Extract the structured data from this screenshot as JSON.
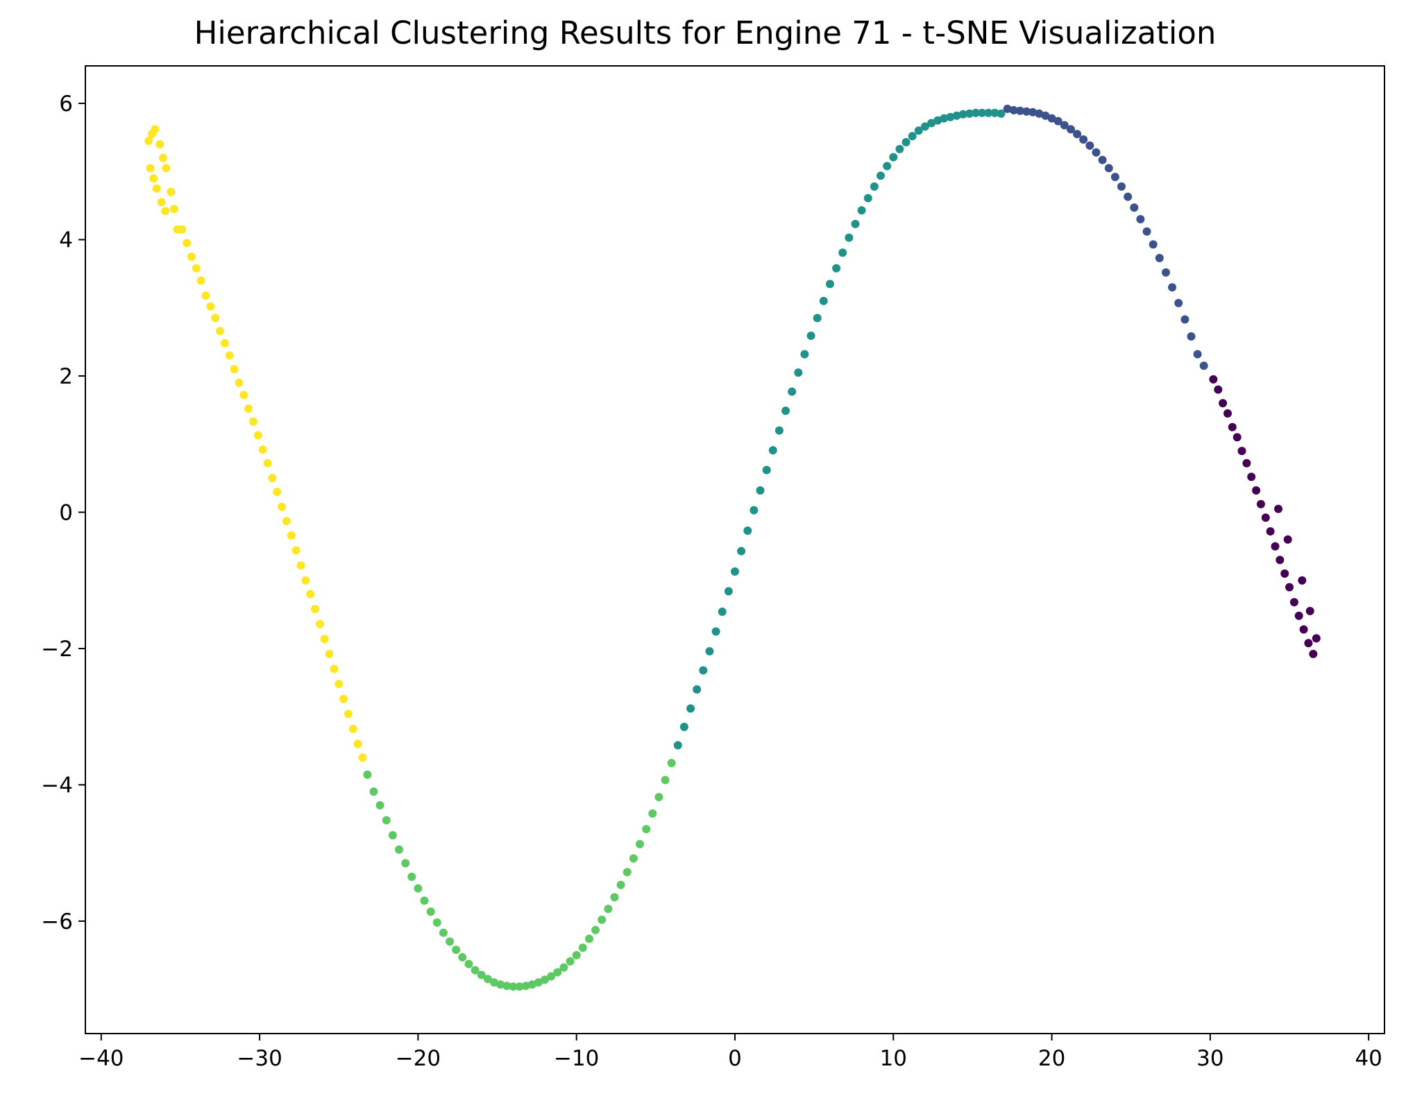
{
  "chart_data": {
    "type": "scatter",
    "title": "Hierarchical Clustering Results for Engine 71 - t-SNE Visualization",
    "xlabel": "",
    "ylabel": "",
    "xlim": [
      -41.0,
      41.0
    ],
    "ylim": [
      -7.65,
      6.55
    ],
    "x_ticks": [
      -40,
      -30,
      -20,
      -10,
      0,
      10,
      20,
      30,
      40
    ],
    "y_ticks": [
      -6,
      -4,
      -2,
      0,
      2,
      4,
      6
    ],
    "x_tick_labels": [
      "−40",
      "−30",
      "−20",
      "−10",
      "0",
      "10",
      "20",
      "30",
      "40"
    ],
    "y_tick_labels": [
      "−6",
      "−4",
      "−2",
      "0",
      "2",
      "4",
      "6"
    ],
    "grid": false,
    "legend": "none",
    "colormap": "viridis",
    "clusters": [
      {
        "color": "#fde725",
        "x_range": [
          -37.2,
          -24.5
        ],
        "peak": [
          -36.8,
          5.6
        ],
        "end": [
          -24.5,
          -3.7
        ]
      },
      {
        "color": "#5ec962",
        "x_range": [
          -24.5,
          -2.8
        ],
        "min": [
          -13.0,
          -6.95
        ],
        "end": [
          -2.8,
          -3.7
        ]
      },
      {
        "color": "#21918c",
        "x_range": [
          -2.8,
          17.0
        ],
        "end": [
          17.0,
          5.85
        ]
      },
      {
        "color": "#3b528b",
        "x_range": [
          17.0,
          30.2
        ],
        "peak": [
          17.5,
          5.9
        ],
        "end": [
          30.2,
          2.0
        ]
      },
      {
        "color": "#440154",
        "x_range": [
          30.2,
          36.8
        ],
        "end": [
          36.8,
          -2.1
        ]
      }
    ],
    "points": [
      {
        "x": -37.0,
        "y": 5.45,
        "c": 0
      },
      {
        "x": -36.8,
        "y": 5.55,
        "c": 0
      },
      {
        "x": -36.6,
        "y": 5.62,
        "c": 0
      },
      {
        "x": -36.9,
        "y": 5.05,
        "c": 0
      },
      {
        "x": -36.7,
        "y": 4.9,
        "c": 0
      },
      {
        "x": -36.5,
        "y": 4.75,
        "c": 0
      },
      {
        "x": -36.3,
        "y": 5.4,
        "c": 0
      },
      {
        "x": -36.1,
        "y": 5.2,
        "c": 0
      },
      {
        "x": -35.9,
        "y": 5.05,
        "c": 0
      },
      {
        "x": -36.2,
        "y": 4.55,
        "c": 0
      },
      {
        "x": -35.95,
        "y": 4.42,
        "c": 0
      },
      {
        "x": -35.6,
        "y": 4.7,
        "c": 0
      },
      {
        "x": -35.4,
        "y": 4.45,
        "c": 0
      },
      {
        "x": -35.2,
        "y": 4.15,
        "c": 0
      },
      {
        "x": -34.9,
        "y": 4.15,
        "c": 0
      },
      {
        "x": -34.6,
        "y": 3.95,
        "c": 0
      },
      {
        "x": -34.3,
        "y": 3.75,
        "c": 0
      },
      {
        "x": -34.0,
        "y": 3.58,
        "c": 0
      },
      {
        "x": -33.7,
        "y": 3.4,
        "c": 0
      },
      {
        "x": -33.4,
        "y": 3.18,
        "c": 0
      },
      {
        "x": -33.1,
        "y": 3.02,
        "c": 0
      },
      {
        "x": -32.8,
        "y": 2.85,
        "c": 0
      },
      {
        "x": -32.5,
        "y": 2.66,
        "c": 0
      },
      {
        "x": -32.2,
        "y": 2.48,
        "c": 0
      },
      {
        "x": -31.9,
        "y": 2.3,
        "c": 0
      },
      {
        "x": -31.6,
        "y": 2.1,
        "c": 0
      },
      {
        "x": -31.3,
        "y": 1.9,
        "c": 0
      },
      {
        "x": -31.0,
        "y": 1.72,
        "c": 0
      },
      {
        "x": -30.7,
        "y": 1.52,
        "c": 0
      },
      {
        "x": -30.4,
        "y": 1.33,
        "c": 0
      },
      {
        "x": -30.1,
        "y": 1.13,
        "c": 0
      },
      {
        "x": -29.8,
        "y": 0.92,
        "c": 0
      },
      {
        "x": -29.5,
        "y": 0.72,
        "c": 0
      },
      {
        "x": -29.2,
        "y": 0.5,
        "c": 0
      },
      {
        "x": -28.9,
        "y": 0.3,
        "c": 0
      },
      {
        "x": -28.6,
        "y": 0.08,
        "c": 0
      },
      {
        "x": -28.3,
        "y": -0.13,
        "c": 0
      },
      {
        "x": -28.0,
        "y": -0.34,
        "c": 0
      },
      {
        "x": -27.7,
        "y": -0.56,
        "c": 0
      },
      {
        "x": -27.4,
        "y": -0.78,
        "c": 0
      },
      {
        "x": -27.1,
        "y": -1.0,
        "c": 0
      },
      {
        "x": -26.8,
        "y": -1.2,
        "c": 0
      },
      {
        "x": -26.5,
        "y": -1.42,
        "c": 0
      },
      {
        "x": -26.2,
        "y": -1.64,
        "c": 0
      },
      {
        "x": -25.9,
        "y": -1.86,
        "c": 0
      },
      {
        "x": -25.6,
        "y": -2.08,
        "c": 0
      },
      {
        "x": -25.3,
        "y": -2.3,
        "c": 0
      },
      {
        "x": -25.0,
        "y": -2.52,
        "c": 0
      },
      {
        "x": -24.7,
        "y": -2.74,
        "c": 0
      },
      {
        "x": -24.4,
        "y": -2.96,
        "c": 0
      },
      {
        "x": -24.1,
        "y": -3.18,
        "c": 0
      },
      {
        "x": -23.8,
        "y": -3.4,
        "c": 0
      },
      {
        "x": -23.5,
        "y": -3.6,
        "c": 0
      },
      {
        "x": -23.2,
        "y": -3.85,
        "c": 1
      },
      {
        "x": -22.8,
        "y": -4.1,
        "c": 1
      },
      {
        "x": -22.4,
        "y": -4.3,
        "c": 1
      },
      {
        "x": -22.0,
        "y": -4.52,
        "c": 1
      },
      {
        "x": -21.6,
        "y": -4.74,
        "c": 1
      },
      {
        "x": -21.2,
        "y": -4.95,
        "c": 1
      },
      {
        "x": -20.8,
        "y": -5.15,
        "c": 1
      },
      {
        "x": -20.4,
        "y": -5.35,
        "c": 1
      },
      {
        "x": -20.0,
        "y": -5.52,
        "c": 1
      },
      {
        "x": -19.6,
        "y": -5.7,
        "c": 1
      },
      {
        "x": -19.2,
        "y": -5.86,
        "c": 1
      },
      {
        "x": -18.8,
        "y": -6.02,
        "c": 1
      },
      {
        "x": -18.4,
        "y": -6.17,
        "c": 1
      },
      {
        "x": -18.0,
        "y": -6.3,
        "c": 1
      },
      {
        "x": -17.6,
        "y": -6.42,
        "c": 1
      },
      {
        "x": -17.2,
        "y": -6.53,
        "c": 1
      },
      {
        "x": -16.8,
        "y": -6.63,
        "c": 1
      },
      {
        "x": -16.4,
        "y": -6.72,
        "c": 1
      },
      {
        "x": -16.0,
        "y": -6.79,
        "c": 1
      },
      {
        "x": -15.6,
        "y": -6.85,
        "c": 1
      },
      {
        "x": -15.2,
        "y": -6.9,
        "c": 1
      },
      {
        "x": -14.8,
        "y": -6.93,
        "c": 1
      },
      {
        "x": -14.4,
        "y": -6.95,
        "c": 1
      },
      {
        "x": -14.0,
        "y": -6.96,
        "c": 1
      },
      {
        "x": -13.6,
        "y": -6.96,
        "c": 1
      },
      {
        "x": -13.2,
        "y": -6.95,
        "c": 1
      },
      {
        "x": -12.8,
        "y": -6.93,
        "c": 1
      },
      {
        "x": -12.4,
        "y": -6.9,
        "c": 1
      },
      {
        "x": -12.0,
        "y": -6.86,
        "c": 1
      },
      {
        "x": -11.6,
        "y": -6.81,
        "c": 1
      },
      {
        "x": -11.2,
        "y": -6.75,
        "c": 1
      },
      {
        "x": -10.8,
        "y": -6.68,
        "c": 1
      },
      {
        "x": -10.4,
        "y": -6.59,
        "c": 1
      },
      {
        "x": -10.0,
        "y": -6.5,
        "c": 1
      },
      {
        "x": -9.6,
        "y": -6.39,
        "c": 1
      },
      {
        "x": -9.2,
        "y": -6.26,
        "c": 1
      },
      {
        "x": -8.8,
        "y": -6.13,
        "c": 1
      },
      {
        "x": -8.4,
        "y": -5.98,
        "c": 1
      },
      {
        "x": -8.0,
        "y": -5.82,
        "c": 1
      },
      {
        "x": -7.6,
        "y": -5.65,
        "c": 1
      },
      {
        "x": -7.2,
        "y": -5.47,
        "c": 1
      },
      {
        "x": -6.8,
        "y": -5.28,
        "c": 1
      },
      {
        "x": -6.4,
        "y": -5.08,
        "c": 1
      },
      {
        "x": -6.0,
        "y": -4.87,
        "c": 1
      },
      {
        "x": -5.6,
        "y": -4.65,
        "c": 1
      },
      {
        "x": -5.2,
        "y": -4.42,
        "c": 1
      },
      {
        "x": -4.8,
        "y": -4.18,
        "c": 1
      },
      {
        "x": -4.4,
        "y": -3.93,
        "c": 1
      },
      {
        "x": -4.0,
        "y": -3.68,
        "c": 1
      },
      {
        "x": -3.6,
        "y": -3.42,
        "c": 2
      },
      {
        "x": -3.2,
        "y": -3.15,
        "c": 2
      },
      {
        "x": -2.8,
        "y": -2.88,
        "c": 2
      },
      {
        "x": -2.4,
        "y": -2.6,
        "c": 2
      },
      {
        "x": -2.0,
        "y": -2.32,
        "c": 2
      },
      {
        "x": -1.6,
        "y": -2.04,
        "c": 2
      },
      {
        "x": -1.2,
        "y": -1.75,
        "c": 2
      },
      {
        "x": -0.8,
        "y": -1.46,
        "c": 2
      },
      {
        "x": -0.4,
        "y": -1.16,
        "c": 2
      },
      {
        "x": 0.0,
        "y": -0.87,
        "c": 2
      },
      {
        "x": 0.4,
        "y": -0.57,
        "c": 2
      },
      {
        "x": 0.8,
        "y": -0.27,
        "c": 2
      },
      {
        "x": 1.2,
        "y": 0.03,
        "c": 2
      },
      {
        "x": 1.6,
        "y": 0.32,
        "c": 2
      },
      {
        "x": 2.0,
        "y": 0.62,
        "c": 2
      },
      {
        "x": 2.4,
        "y": 0.91,
        "c": 2
      },
      {
        "x": 2.8,
        "y": 1.2,
        "c": 2
      },
      {
        "x": 3.2,
        "y": 1.49,
        "c": 2
      },
      {
        "x": 3.6,
        "y": 1.77,
        "c": 2
      },
      {
        "x": 4.0,
        "y": 2.05,
        "c": 2
      },
      {
        "x": 4.4,
        "y": 2.32,
        "c": 2
      },
      {
        "x": 4.8,
        "y": 2.59,
        "c": 2
      },
      {
        "x": 5.2,
        "y": 2.85,
        "c": 2
      },
      {
        "x": 5.6,
        "y": 3.1,
        "c": 2
      },
      {
        "x": 6.0,
        "y": 3.35,
        "c": 2
      },
      {
        "x": 6.4,
        "y": 3.58,
        "c": 2
      },
      {
        "x": 6.8,
        "y": 3.81,
        "c": 2
      },
      {
        "x": 7.2,
        "y": 4.03,
        "c": 2
      },
      {
        "x": 7.6,
        "y": 4.23,
        "c": 2
      },
      {
        "x": 8.0,
        "y": 4.43,
        "c": 2
      },
      {
        "x": 8.4,
        "y": 4.61,
        "c": 2
      },
      {
        "x": 8.8,
        "y": 4.78,
        "c": 2
      },
      {
        "x": 9.2,
        "y": 4.94,
        "c": 2
      },
      {
        "x": 9.6,
        "y": 5.08,
        "c": 2
      },
      {
        "x": 10.0,
        "y": 5.21,
        "c": 2
      },
      {
        "x": 10.4,
        "y": 5.33,
        "c": 2
      },
      {
        "x": 10.8,
        "y": 5.43,
        "c": 2
      },
      {
        "x": 11.2,
        "y": 5.52,
        "c": 2
      },
      {
        "x": 11.6,
        "y": 5.6,
        "c": 2
      },
      {
        "x": 12.0,
        "y": 5.66,
        "c": 2
      },
      {
        "x": 12.4,
        "y": 5.71,
        "c": 2
      },
      {
        "x": 12.8,
        "y": 5.75,
        "c": 2
      },
      {
        "x": 13.2,
        "y": 5.78,
        "c": 2
      },
      {
        "x": 13.6,
        "y": 5.8,
        "c": 2
      },
      {
        "x": 14.0,
        "y": 5.82,
        "c": 2
      },
      {
        "x": 14.4,
        "y": 5.84,
        "c": 2
      },
      {
        "x": 14.8,
        "y": 5.85,
        "c": 2
      },
      {
        "x": 15.2,
        "y": 5.86,
        "c": 2
      },
      {
        "x": 15.6,
        "y": 5.86,
        "c": 2
      },
      {
        "x": 16.0,
        "y": 5.86,
        "c": 2
      },
      {
        "x": 16.4,
        "y": 5.86,
        "c": 2
      },
      {
        "x": 16.8,
        "y": 5.85,
        "c": 2
      },
      {
        "x": 17.2,
        "y": 5.92,
        "c": 3
      },
      {
        "x": 17.6,
        "y": 5.9,
        "c": 3
      },
      {
        "x": 18.0,
        "y": 5.89,
        "c": 3
      },
      {
        "x": 18.4,
        "y": 5.88,
        "c": 3
      },
      {
        "x": 18.8,
        "y": 5.87,
        "c": 3
      },
      {
        "x": 19.2,
        "y": 5.85,
        "c": 3
      },
      {
        "x": 19.6,
        "y": 5.82,
        "c": 3
      },
      {
        "x": 20.0,
        "y": 5.78,
        "c": 3
      },
      {
        "x": 20.4,
        "y": 5.74,
        "c": 3
      },
      {
        "x": 20.8,
        "y": 5.68,
        "c": 3
      },
      {
        "x": 21.2,
        "y": 5.62,
        "c": 3
      },
      {
        "x": 21.6,
        "y": 5.55,
        "c": 3
      },
      {
        "x": 22.0,
        "y": 5.47,
        "c": 3
      },
      {
        "x": 22.4,
        "y": 5.38,
        "c": 3
      },
      {
        "x": 22.8,
        "y": 5.28,
        "c": 3
      },
      {
        "x": 23.2,
        "y": 5.17,
        "c": 3
      },
      {
        "x": 23.6,
        "y": 5.05,
        "c": 3
      },
      {
        "x": 24.0,
        "y": 4.92,
        "c": 3
      },
      {
        "x": 24.4,
        "y": 4.78,
        "c": 3
      },
      {
        "x": 24.8,
        "y": 4.63,
        "c": 3
      },
      {
        "x": 25.2,
        "y": 4.47,
        "c": 3
      },
      {
        "x": 25.6,
        "y": 4.3,
        "c": 3
      },
      {
        "x": 26.0,
        "y": 4.12,
        "c": 3
      },
      {
        "x": 26.4,
        "y": 3.93,
        "c": 3
      },
      {
        "x": 26.8,
        "y": 3.73,
        "c": 3
      },
      {
        "x": 27.2,
        "y": 3.52,
        "c": 3
      },
      {
        "x": 27.6,
        "y": 3.3,
        "c": 3
      },
      {
        "x": 28.0,
        "y": 3.07,
        "c": 3
      },
      {
        "x": 28.4,
        "y": 2.83,
        "c": 3
      },
      {
        "x": 28.8,
        "y": 2.58,
        "c": 3
      },
      {
        "x": 29.2,
        "y": 2.32,
        "c": 3
      },
      {
        "x": 29.6,
        "y": 2.15,
        "c": 3
      },
      {
        "x": 30.2,
        "y": 1.95,
        "c": 4
      },
      {
        "x": 30.5,
        "y": 1.8,
        "c": 4
      },
      {
        "x": 30.8,
        "y": 1.6,
        "c": 4
      },
      {
        "x": 31.1,
        "y": 1.45,
        "c": 4
      },
      {
        "x": 31.4,
        "y": 1.25,
        "c": 4
      },
      {
        "x": 31.7,
        "y": 1.1,
        "c": 4
      },
      {
        "x": 32.0,
        "y": 0.9,
        "c": 4
      },
      {
        "x": 32.3,
        "y": 0.72,
        "c": 4
      },
      {
        "x": 32.6,
        "y": 0.52,
        "c": 4
      },
      {
        "x": 32.9,
        "y": 0.32,
        "c": 4
      },
      {
        "x": 33.2,
        "y": 0.12,
        "c": 4
      },
      {
        "x": 33.5,
        "y": -0.08,
        "c": 4
      },
      {
        "x": 33.8,
        "y": -0.28,
        "c": 4
      },
      {
        "x": 34.1,
        "y": -0.5,
        "c": 4
      },
      {
        "x": 34.4,
        "y": -0.7,
        "c": 4
      },
      {
        "x": 34.7,
        "y": -0.9,
        "c": 4
      },
      {
        "x": 35.0,
        "y": -1.1,
        "c": 4
      },
      {
        "x": 35.3,
        "y": -1.32,
        "c": 4
      },
      {
        "x": 35.6,
        "y": -1.52,
        "c": 4
      },
      {
        "x": 35.9,
        "y": -1.72,
        "c": 4
      },
      {
        "x": 36.2,
        "y": -1.92,
        "c": 4
      },
      {
        "x": 36.5,
        "y": -2.08,
        "c": 4
      },
      {
        "x": 36.7,
        "y": -1.85,
        "c": 4
      },
      {
        "x": 36.3,
        "y": -1.45,
        "c": 4
      },
      {
        "x": 35.8,
        "y": -1.0,
        "c": 4
      },
      {
        "x": 34.9,
        "y": -0.4,
        "c": 4
      },
      {
        "x": 34.3,
        "y": 0.05,
        "c": 4
      }
    ]
  }
}
